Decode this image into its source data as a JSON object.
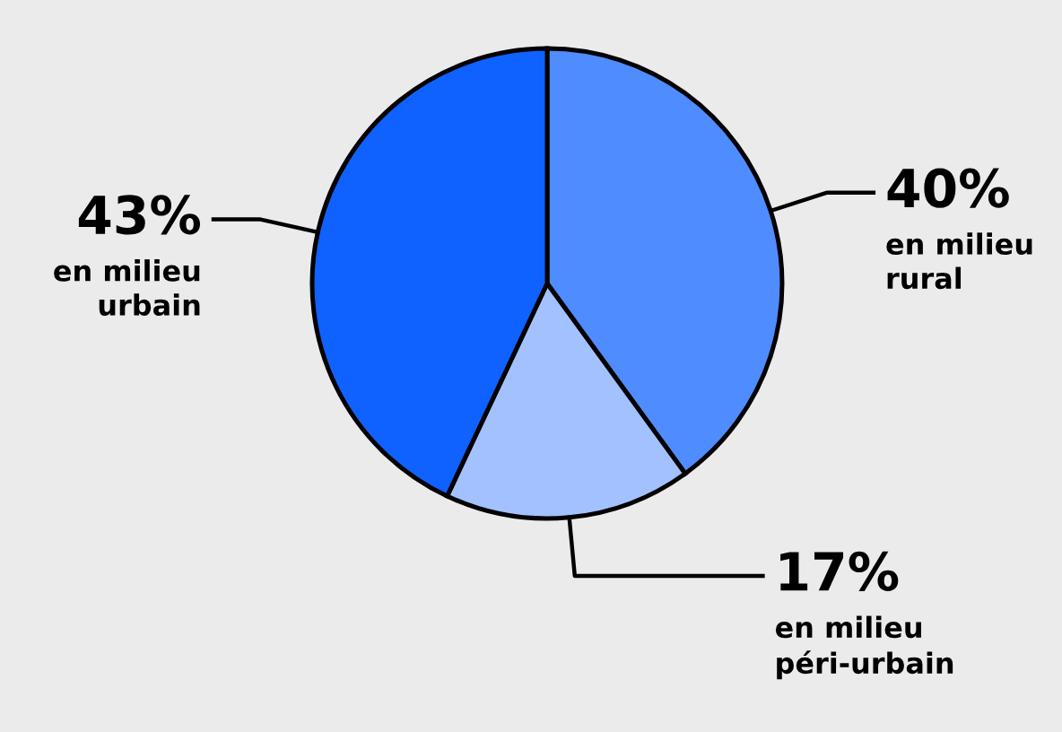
{
  "chart_data": {
    "type": "pie",
    "categories": [
      "en milieu\nrural",
      "en milieu\npéri-urbain",
      "en milieu\nurbain"
    ],
    "values": [
      40,
      17,
      43
    ],
    "value_labels": [
      "40%",
      "17%",
      "43%"
    ],
    "colors": [
      "#4f8cff",
      "#a3c1ff",
      "#0f62ff"
    ]
  }
}
